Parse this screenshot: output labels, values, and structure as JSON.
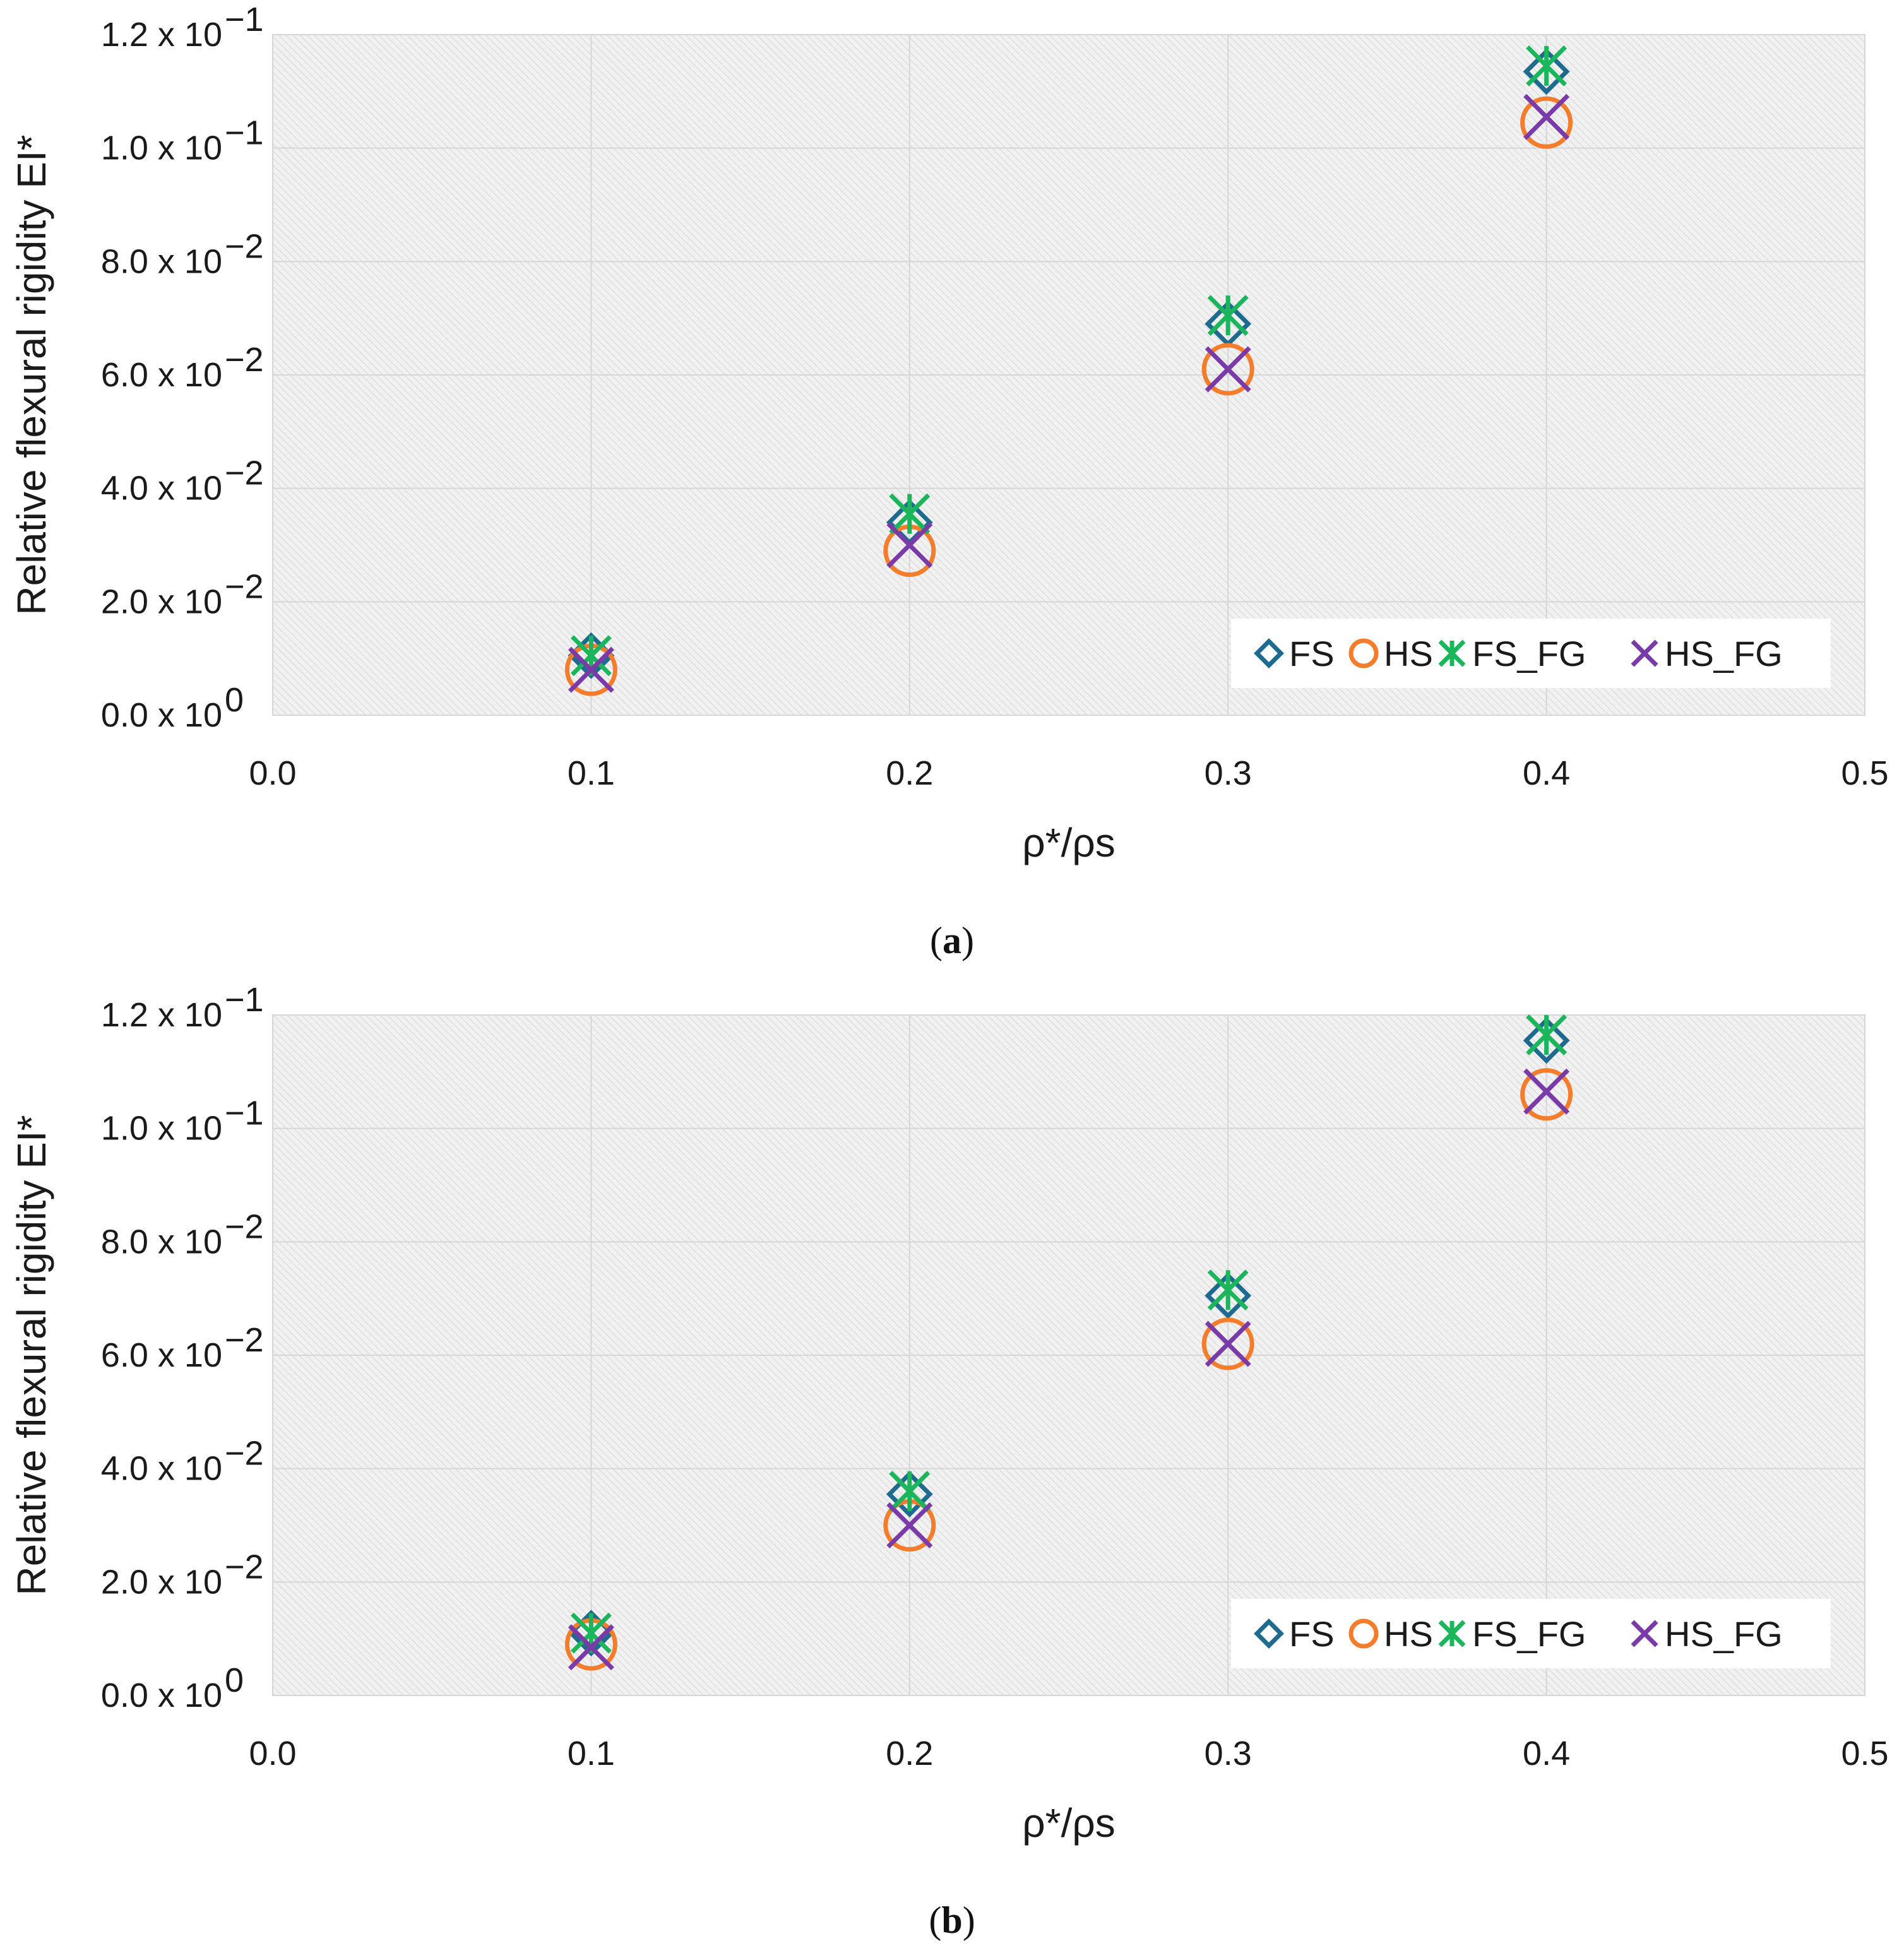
{
  "colors": {
    "FS": "#1f6a8f",
    "HS": "#f47c2a",
    "FS_FG": "#1bb55c",
    "HS_FG": "#7a3aa8",
    "grid": "#d9d9d9",
    "background": "#eeeeee"
  },
  "chart_data": [
    {
      "type": "scatter",
      "panel_label": "a",
      "caption_open": "(",
      "caption_close": ")",
      "xlabel": "ρ*/ρs",
      "ylabel": "Relative flexural rigidity EI*",
      "xlim": [
        0.0,
        0.5
      ],
      "ylim": [
        0.0,
        0.12
      ],
      "grid": true,
      "legend_position": "bottom-right",
      "x_ticks": [
        "0.0",
        "0.1",
        "0.2",
        "0.3",
        "0.4",
        "0.5"
      ],
      "y_ticks": [
        {
          "mantissa": "0.0 x 10",
          "exp": "0"
        },
        {
          "mantissa": "2.0 x 10",
          "exp": "−2"
        },
        {
          "mantissa": "4.0 x 10",
          "exp": "−2"
        },
        {
          "mantissa": "6.0 x 10",
          "exp": "−2"
        },
        {
          "mantissa": "8.0 x 10",
          "exp": "−2"
        },
        {
          "mantissa": "1.0 x 10",
          "exp": "−1"
        },
        {
          "mantissa": "1.2 x 10",
          "exp": "−1"
        }
      ],
      "x": [
        0.1,
        0.2,
        0.3,
        0.4
      ],
      "series": [
        {
          "name": "FS",
          "marker": "diamond",
          "values": [
            0.0105,
            0.034,
            0.069,
            0.1135
          ]
        },
        {
          "name": "HS",
          "marker": "circle",
          "values": [
            0.008,
            0.029,
            0.061,
            0.1045
          ]
        },
        {
          "name": "FS_FG",
          "marker": "asterisk",
          "values": [
            0.0105,
            0.0355,
            0.0705,
            0.1145
          ]
        },
        {
          "name": "HS_FG",
          "marker": "x",
          "values": [
            0.008,
            0.03,
            0.061,
            0.1055
          ]
        }
      ]
    },
    {
      "type": "scatter",
      "panel_label": "b",
      "caption_open": "(",
      "caption_close": ")",
      "xlabel": "ρ*/ρs",
      "ylabel": "Relative flexural rigidity EI*",
      "xlim": [
        0.0,
        0.5
      ],
      "ylim": [
        0.0,
        0.12
      ],
      "grid": true,
      "legend_position": "bottom-right",
      "x_ticks": [
        "0.0",
        "0.1",
        "0.2",
        "0.3",
        "0.4",
        "0.5"
      ],
      "y_ticks": [
        {
          "mantissa": "0.0 x 10",
          "exp": "0"
        },
        {
          "mantissa": "2.0 x 10",
          "exp": "−2"
        },
        {
          "mantissa": "4.0 x 10",
          "exp": "−2"
        },
        {
          "mantissa": "6.0 x 10",
          "exp": "−2"
        },
        {
          "mantissa": "8.0 x 10",
          "exp": "−2"
        },
        {
          "mantissa": "1.0 x 10",
          "exp": "−1"
        },
        {
          "mantissa": "1.2 x 10",
          "exp": "−1"
        }
      ],
      "x": [
        0.1,
        0.2,
        0.3,
        0.4
      ],
      "series": [
        {
          "name": "FS",
          "marker": "diamond",
          "values": [
            0.011,
            0.0355,
            0.0705,
            0.1155
          ]
        },
        {
          "name": "HS",
          "marker": "circle",
          "values": [
            0.009,
            0.03,
            0.062,
            0.106
          ]
        },
        {
          "name": "FS_FG",
          "marker": "asterisk",
          "values": [
            0.011,
            0.036,
            0.0715,
            0.1165
          ]
        },
        {
          "name": "HS_FG",
          "marker": "x",
          "values": [
            0.0085,
            0.03,
            0.062,
            0.1065
          ]
        }
      ]
    }
  ]
}
